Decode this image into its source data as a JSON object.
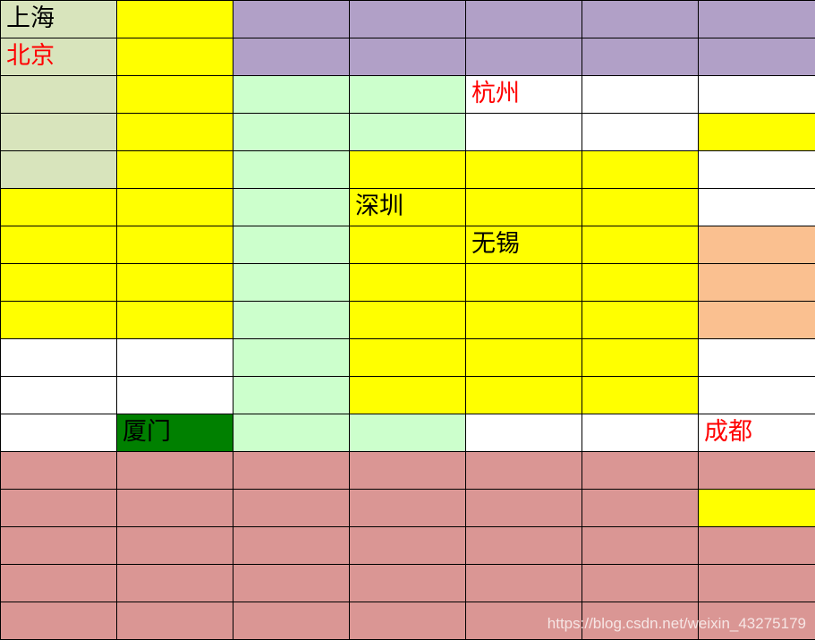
{
  "palette": {
    "S": "#d8e4bc",
    "Y": "#ffff00",
    "P": "#b1a0c7",
    "G": "#ccffcc",
    "W": "#ffffff",
    "O": "#fac090",
    "D": "#008000",
    "R": "#da9694"
  },
  "text_colors": {
    "black": "#000000",
    "red": "#ff0000"
  },
  "rows": [
    [
      "S",
      "Y",
      "P",
      "P",
      "P",
      "P",
      "P"
    ],
    [
      "S",
      "Y",
      "P",
      "P",
      "P",
      "P",
      "P"
    ],
    [
      "S",
      "Y",
      "G",
      "G",
      "W",
      "W",
      "W"
    ],
    [
      "S",
      "Y",
      "G",
      "G",
      "W",
      "W",
      "Y"
    ],
    [
      "S",
      "Y",
      "G",
      "Y",
      "Y",
      "Y",
      "W"
    ],
    [
      "Y",
      "Y",
      "G",
      "Y",
      "Y",
      "Y",
      "W"
    ],
    [
      "Y",
      "Y",
      "G",
      "Y",
      "Y",
      "Y",
      "O"
    ],
    [
      "Y",
      "Y",
      "G",
      "Y",
      "Y",
      "Y",
      "O"
    ],
    [
      "Y",
      "Y",
      "G",
      "Y",
      "Y",
      "Y",
      "O"
    ],
    [
      "W",
      "W",
      "G",
      "Y",
      "Y",
      "Y",
      "W"
    ],
    [
      "W",
      "W",
      "G",
      "Y",
      "Y",
      "Y",
      "W"
    ],
    [
      "W",
      "D",
      "G",
      "G",
      "W",
      "W",
      "W"
    ],
    [
      "R",
      "R",
      "R",
      "R",
      "R",
      "R",
      "R"
    ],
    [
      "R",
      "R",
      "R",
      "R",
      "R",
      "R",
      "Y"
    ],
    [
      "R",
      "R",
      "R",
      "R",
      "R",
      "R",
      "R"
    ],
    [
      "R",
      "R",
      "R",
      "R",
      "R",
      "R",
      "R"
    ],
    [
      "R",
      "R",
      "R",
      "R",
      "R",
      "R",
      "R"
    ]
  ],
  "labels": [
    {
      "row": 0,
      "col": 0,
      "text": "上海",
      "color": "black"
    },
    {
      "row": 1,
      "col": 0,
      "text": "北京",
      "color": "red"
    },
    {
      "row": 2,
      "col": 4,
      "text": "杭州",
      "color": "red"
    },
    {
      "row": 5,
      "col": 3,
      "text": "深圳",
      "color": "black"
    },
    {
      "row": 6,
      "col": 4,
      "text": "无锡",
      "color": "black"
    },
    {
      "row": 11,
      "col": 1,
      "text": "厦门",
      "color": "black"
    },
    {
      "row": 11,
      "col": 6,
      "text": "成都",
      "color": "red"
    }
  ],
  "watermark": "https://blog.csdn.net/weixin_43275179"
}
